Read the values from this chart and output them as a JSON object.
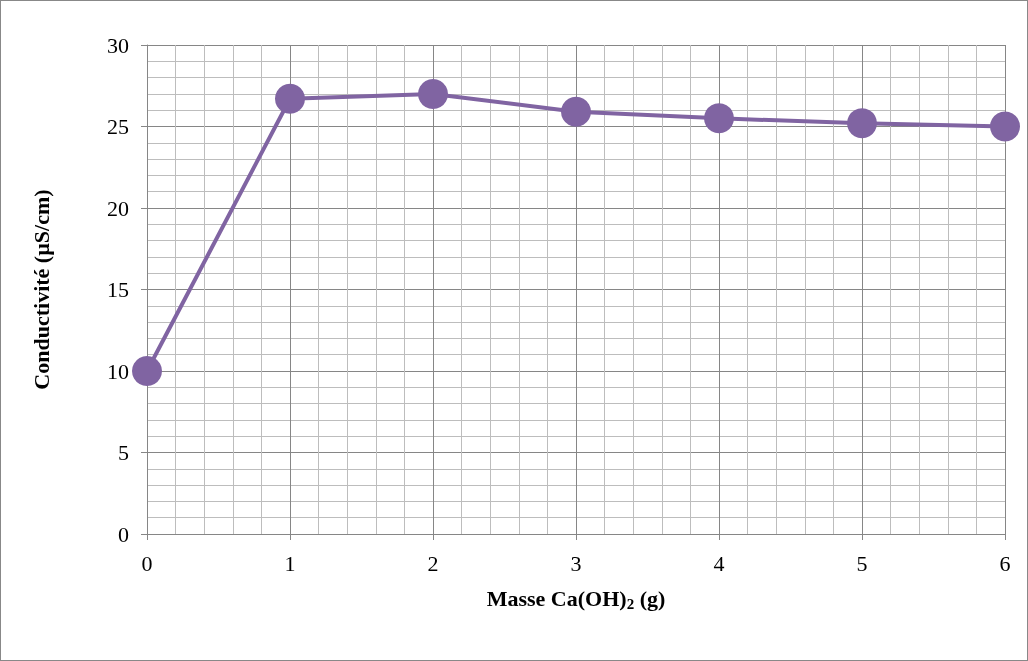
{
  "chart_data": {
    "type": "line",
    "xlabel": "Masse Ca(OH)$_{2}$ (g)",
    "ylabel": "Conductivité (µS/cm)",
    "x": [
      0,
      1,
      2,
      3,
      4,
      5,
      6
    ],
    "series": [
      {
        "color": "#8064a2",
        "values": [
          10.0,
          26.7,
          27.0,
          25.9,
          25.5,
          25.2,
          25.0
        ]
      }
    ],
    "xlim": [
      0,
      6
    ],
    "xticks": [
      0,
      1,
      2,
      3,
      4,
      5,
      6
    ],
    "ylim": [
      0,
      30
    ],
    "yticks": [
      0,
      5,
      10,
      15,
      20,
      25,
      30
    ],
    "grid": true,
    "marker": "circle",
    "line_style": "solid"
  }
}
